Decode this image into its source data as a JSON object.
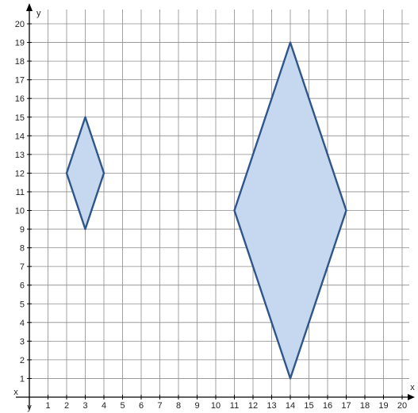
{
  "chart_data": {
    "type": "diagram",
    "x_axis": {
      "label": "x",
      "range": [
        0,
        20
      ],
      "tick_labels": [
        "1",
        "2",
        "3",
        "4",
        "5",
        "6",
        "7",
        "8",
        "9",
        "10",
        "11",
        "12",
        "13",
        "14",
        "15",
        "16",
        "17",
        "18",
        "19",
        "20"
      ]
    },
    "y_axis": {
      "label": "y",
      "range": [
        0,
        20
      ],
      "tick_labels": [
        "1",
        "2",
        "3",
        "4",
        "5",
        "6",
        "7",
        "8",
        "9",
        "10",
        "11",
        "12",
        "13",
        "14",
        "15",
        "16",
        "17",
        "18",
        "19",
        "20"
      ]
    },
    "origin_labels": {
      "x": "x",
      "y": "y"
    },
    "grid": true,
    "shapes": [
      {
        "type": "rhombus",
        "vertices": [
          [
            3,
            15
          ],
          [
            4,
            12
          ],
          [
            3,
            9
          ],
          [
            2,
            12
          ]
        ]
      },
      {
        "type": "rhombus",
        "vertices": [
          [
            14,
            19
          ],
          [
            17,
            10
          ],
          [
            14,
            1
          ],
          [
            11,
            10
          ]
        ]
      }
    ],
    "colors": {
      "fill": "#c6d8f0",
      "stroke": "#2f5689",
      "grid": "#8c8c8c",
      "axis": "#000000"
    }
  }
}
